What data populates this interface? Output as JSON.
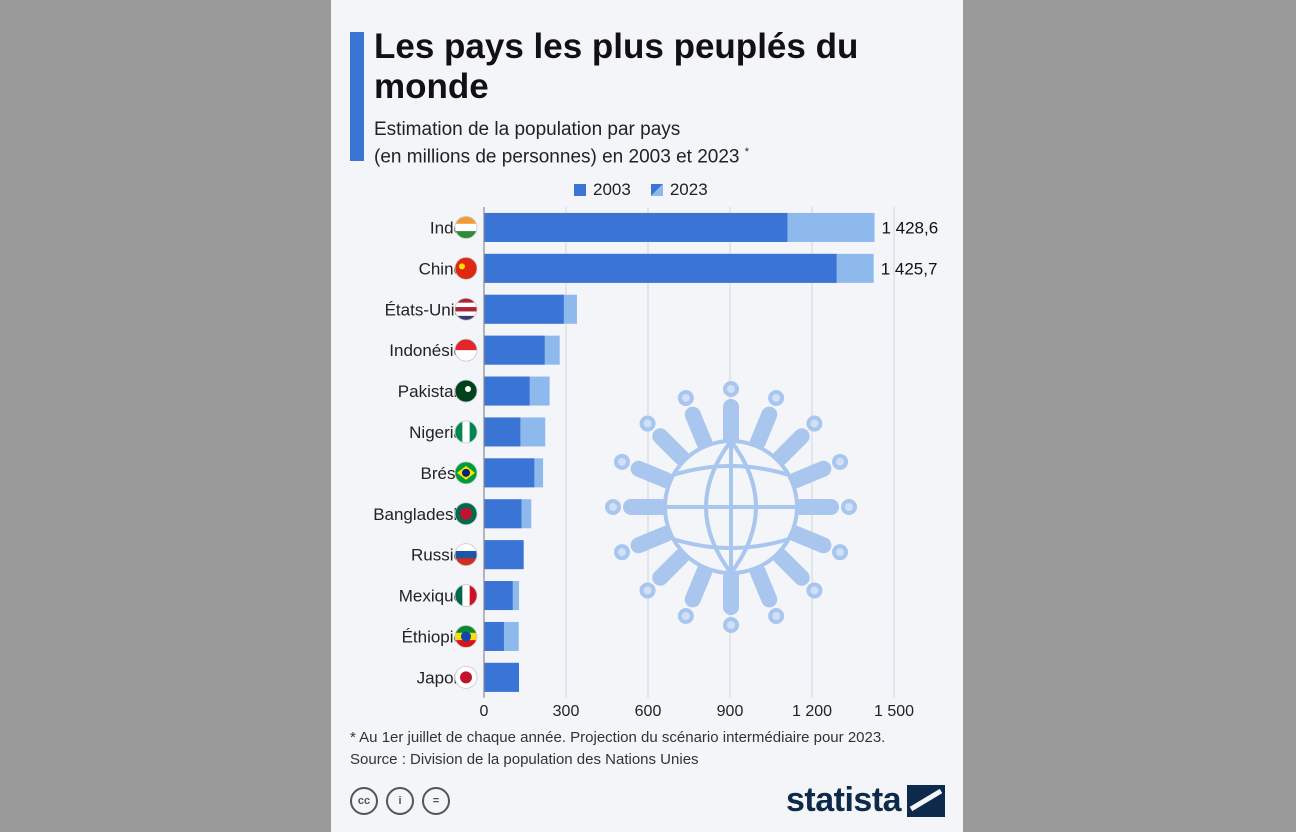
{
  "title": "Les pays les plus peuplés du monde",
  "subtitle_line1": "Estimation de la population par pays",
  "subtitle_line2": "(en millions de personnes) en 2003 et 2023",
  "subtitle_mark": "*",
  "footnote": "* Au 1er juillet de chaque année. Projection du scénario intermédiaire pour 2023.",
  "source": "Source : Division de la population des Nations Unies",
  "brand": "statista",
  "cc_labels": [
    "cc",
    "i",
    "="
  ],
  "colors": {
    "series_2003": "#3a74d4",
    "series_2023": "#8db9ec",
    "accent": "#3a74d4"
  },
  "chart_data": {
    "type": "bar",
    "orientation": "horizontal",
    "categories": [
      "Inde",
      "Chine",
      "États-Unis",
      "Indonésie",
      "Pakistan",
      "Nigeria",
      "Brésil",
      "Bangladesh",
      "Russie",
      "Mexique",
      "Éthiopie",
      "Japon"
    ],
    "flags": [
      "flag-india-icon",
      "flag-china-icon",
      "flag-usa-icon",
      "flag-indonesia-icon",
      "flag-pakistan-icon",
      "flag-nigeria-icon",
      "flag-brazil-icon",
      "flag-bangladesh-icon",
      "flag-russia-icon",
      "flag-mexico-icon",
      "flag-ethiopia-icon",
      "flag-japan-icon"
    ],
    "series": [
      {
        "name": "2003",
        "values": [
          1110,
          1290,
          292,
          222,
          167,
          133,
          184,
          137,
          145,
          105,
          73,
          128
        ]
      },
      {
        "name": "2023",
        "values": [
          1428.6,
          1425.7,
          340,
          277,
          240,
          224,
          216,
          173,
          144,
          128,
          127,
          123
        ]
      }
    ],
    "data_labels": [
      "1 428,6",
      "1 425,7",
      "",
      "",
      "",
      "",
      "",
      "",
      "",
      "",
      "",
      ""
    ],
    "xticks": [
      0,
      300,
      600,
      900,
      1200,
      1500
    ],
    "xtick_labels": [
      "0",
      "300",
      "600",
      "900",
      "1 200",
      "1 500"
    ],
    "xlim": [
      0,
      1500
    ],
    "grid": true,
    "legend_position": "top"
  }
}
